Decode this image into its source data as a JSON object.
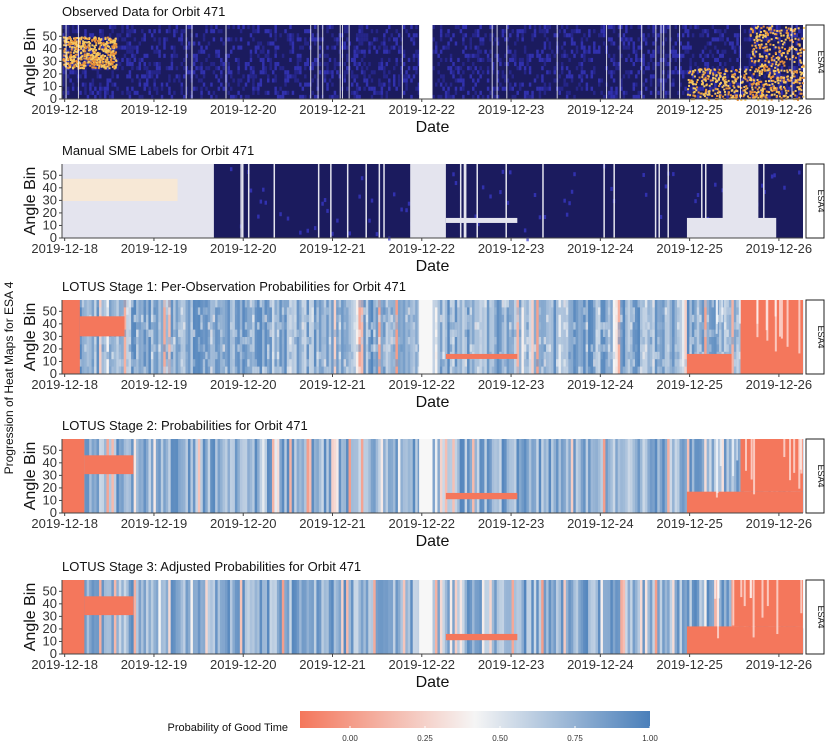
{
  "figure": {
    "outer_ylabel": "Progression of Heat Maps for ESA 4",
    "legend_title": "Probability of Good Time",
    "legend_ticks": [
      "0.00",
      "0.25",
      "0.50",
      "0.75",
      "1.00"
    ],
    "colors": {
      "low": "#f4775c",
      "mid": "#f5f5f5",
      "high": "#4a7fba",
      "navy": "#1b1b5e",
      "yellow": "#f6c85f",
      "gray": "#e4e4ee"
    }
  },
  "chart_data": [
    {
      "type": "heatmap",
      "title": "Observed Data for Orbit 471",
      "xlabel": "Date",
      "ylabel": "Angle Bin",
      "facet_label": "ESA4",
      "x_ticks": [
        "2019-12-18",
        "2019-12-19",
        "2019-12-20",
        "2019-12-21",
        "2019-12-22",
        "2019-12-23",
        "2019-12-24",
        "2019-12-25",
        "2019-12-26"
      ],
      "y_ticks": [
        "0",
        "10",
        "20",
        "30",
        "40",
        "50"
      ],
      "ylim": [
        0,
        59
      ],
      "xlim_days": [
        0,
        8.3
      ],
      "style": "observed",
      "gaps": [
        [
          4.0,
          4.15
        ]
      ],
      "hot_regions": [
        {
          "x": [
            0.0,
            0.6
          ],
          "y": [
            25,
            50
          ],
          "level": "high"
        },
        {
          "x": [
            7.0,
            8.3
          ],
          "y": [
            0,
            25
          ],
          "level": "high"
        },
        {
          "x": [
            7.7,
            8.3
          ],
          "y": [
            25,
            59
          ],
          "level": "medium"
        }
      ]
    },
    {
      "type": "heatmap",
      "title": "Manual SME Labels for Orbit 471",
      "xlabel": "Date",
      "ylabel": "Angle Bin",
      "facet_label": "ESA4",
      "x_ticks": [
        "2019-12-18",
        "2019-12-19",
        "2019-12-20",
        "2019-12-21",
        "2019-12-22",
        "2019-12-23",
        "2019-12-24",
        "2019-12-25",
        "2019-12-26"
      ],
      "y_ticks": [
        "0",
        "10",
        "20",
        "30",
        "40",
        "50"
      ],
      "ylim": [
        0,
        59
      ],
      "xlim_days": [
        0,
        8.3
      ],
      "style": "labels",
      "bad_regions": [
        {
          "x": [
            0.0,
            1.7
          ],
          "y": [
            0,
            59
          ]
        },
        {
          "x": [
            3.9,
            4.3
          ],
          "y": [
            0,
            59
          ]
        },
        {
          "x": [
            4.3,
            5.1
          ],
          "y": [
            12,
            16
          ]
        },
        {
          "x": [
            7.0,
            8.0
          ],
          "y": [
            0,
            16
          ]
        },
        {
          "x": [
            7.4,
            7.8
          ],
          "y": [
            0,
            59
          ]
        }
      ]
    },
    {
      "type": "heatmap",
      "title": "LOTUS Stage 1: Per-Observation Probabilities for Orbit 471",
      "xlabel": "Date",
      "ylabel": "Angle Bin",
      "facet_label": "ESA4",
      "x_ticks": [
        "2019-12-18",
        "2019-12-19",
        "2019-12-20",
        "2019-12-21",
        "2019-12-22",
        "2019-12-23",
        "2019-12-24",
        "2019-12-25",
        "2019-12-26"
      ],
      "y_ticks": [
        "0",
        "10",
        "20",
        "30",
        "40",
        "50"
      ],
      "ylim": [
        0,
        59
      ],
      "xlim_days": [
        0,
        8.3
      ],
      "style": "prob_noisy",
      "bad_regions": [
        {
          "x": [
            0.0,
            0.2
          ],
          "y": [
            0,
            59
          ]
        },
        {
          "x": [
            0.2,
            0.7
          ],
          "y": [
            30,
            46
          ]
        },
        {
          "x": [
            4.3,
            5.1
          ],
          "y": [
            12,
            16
          ]
        },
        {
          "x": [
            7.0,
            7.5
          ],
          "y": [
            0,
            16
          ]
        },
        {
          "x": [
            7.6,
            8.3
          ],
          "y": [
            0,
            59
          ]
        }
      ]
    },
    {
      "type": "heatmap",
      "title": "LOTUS Stage 2: Probabilities for Orbit 471",
      "xlabel": "Date",
      "ylabel": "Angle Bin",
      "facet_label": "ESA4",
      "x_ticks": [
        "2019-12-18",
        "2019-12-19",
        "2019-12-20",
        "2019-12-21",
        "2019-12-22",
        "2019-12-23",
        "2019-12-24",
        "2019-12-25",
        "2019-12-26"
      ],
      "y_ticks": [
        "0",
        "10",
        "20",
        "30",
        "40",
        "50"
      ],
      "ylim": [
        0,
        59
      ],
      "xlim_days": [
        0,
        8.3
      ],
      "style": "prob_smooth",
      "bad_regions": [
        {
          "x": [
            0.0,
            0.25
          ],
          "y": [
            0,
            59
          ]
        },
        {
          "x": [
            0.25,
            0.8
          ],
          "y": [
            31,
            46
          ]
        },
        {
          "x": [
            4.3,
            5.1
          ],
          "y": [
            11,
            16
          ]
        },
        {
          "x": [
            7.0,
            8.3
          ],
          "y": [
            0,
            17
          ]
        },
        {
          "x": [
            7.6,
            8.3
          ],
          "y": [
            17,
            59
          ]
        }
      ]
    },
    {
      "type": "heatmap",
      "title": "LOTUS Stage 3: Adjusted Probabilities for Orbit 471",
      "xlabel": "Date",
      "ylabel": "Angle Bin",
      "facet_label": "ESA4",
      "x_ticks": [
        "2019-12-18",
        "2019-12-19",
        "2019-12-20",
        "2019-12-21",
        "2019-12-22",
        "2019-12-23",
        "2019-12-24",
        "2019-12-25",
        "2019-12-26"
      ],
      "y_ticks": [
        "0",
        "10",
        "20",
        "30",
        "40",
        "50"
      ],
      "ylim": [
        0,
        59
      ],
      "xlim_days": [
        0,
        8.3
      ],
      "style": "prob_smooth",
      "bad_regions": [
        {
          "x": [
            0.0,
            0.25
          ],
          "y": [
            0,
            59
          ]
        },
        {
          "x": [
            0.25,
            0.8
          ],
          "y": [
            31,
            46
          ]
        },
        {
          "x": [
            4.3,
            5.1
          ],
          "y": [
            11,
            16
          ]
        },
        {
          "x": [
            7.0,
            8.3
          ],
          "y": [
            0,
            22
          ]
        },
        {
          "x": [
            7.5,
            8.3
          ],
          "y": [
            22,
            59
          ]
        }
      ]
    }
  ]
}
